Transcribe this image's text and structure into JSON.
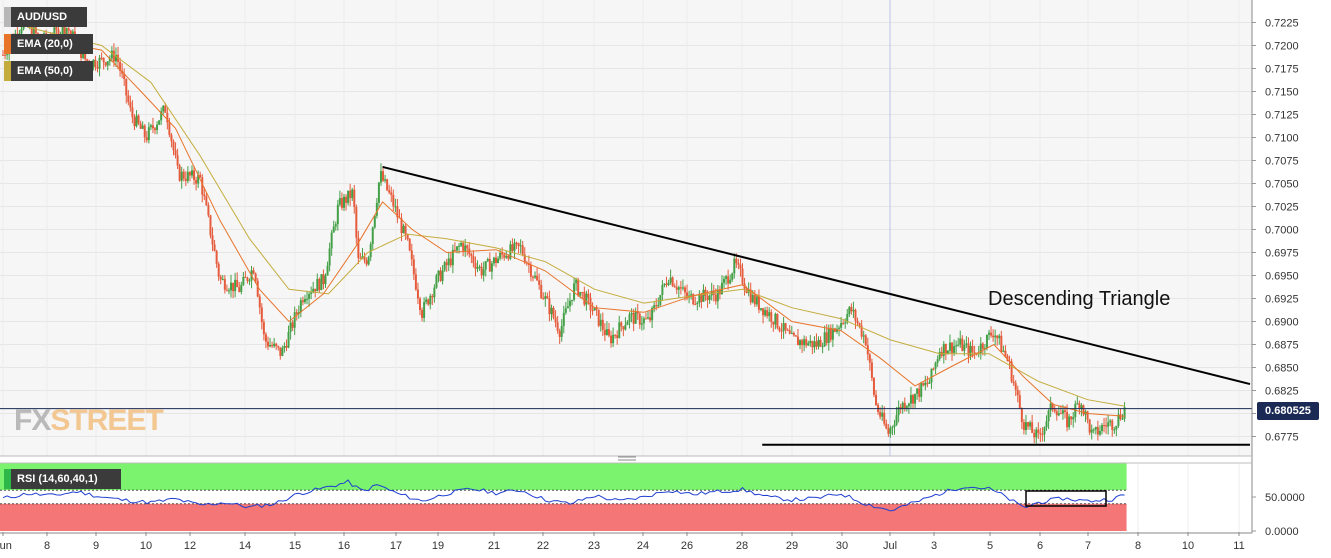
{
  "symbol": "AUD/USD",
  "ema20_label": "EMA (20,0)",
  "ema50_label": "EMA (50,0)",
  "rsi_label": "RSI (14,60,40,1)",
  "annotation": "Descending Triangle",
  "current_price": "0.680525",
  "watermark": {
    "part1": "FX",
    "part2": "STREET"
  },
  "colors": {
    "up": "#43a047",
    "down": "#e55b3c",
    "ema20": "#e8742a",
    "ema50": "#c4ac3c",
    "rsi_line": "#1f3fd0",
    "rsi_overbought": "#7cf36e",
    "rsi_oversold": "#f47676",
    "price_line": "#1b2a55",
    "background": "#f6f6f6"
  },
  "chart_data": {
    "type": "candlestick",
    "price_axis": {
      "ticks": [
        "0.7225",
        "0.7200",
        "0.7175",
        "0.7150",
        "0.7125",
        "0.7100",
        "0.7075",
        "0.7050",
        "0.7025",
        "0.7000",
        "0.6975",
        "0.6950",
        "0.6925",
        "0.6900",
        "0.6875",
        "0.6850",
        "0.6825",
        "0.6800",
        "0.6775"
      ],
      "range": [
        0.676,
        0.7245
      ]
    },
    "x_labels": [
      "Jun",
      "8",
      "9",
      "10",
      "12",
      "14",
      "15",
      "16",
      "17",
      "19",
      "21",
      "22",
      "23",
      "24",
      "26",
      "28",
      "29",
      "30",
      "Jul",
      "3",
      "5",
      "6",
      "7",
      "8",
      "10",
      "11"
    ],
    "price_path": [
      {
        "d": 0.0,
        "p": 0.719
      },
      {
        "d": 0.4,
        "p": 0.7225
      },
      {
        "d": 0.8,
        "p": 0.7205
      },
      {
        "d": 1.3,
        "p": 0.722
      },
      {
        "d": 1.7,
        "p": 0.7182
      },
      {
        "d": 2.0,
        "p": 0.7183
      },
      {
        "d": 2.3,
        "p": 0.719
      },
      {
        "d": 2.6,
        "p": 0.7125
      },
      {
        "d": 2.9,
        "p": 0.71
      },
      {
        "d": 3.3,
        "p": 0.7132
      },
      {
        "d": 3.55,
        "p": 0.706
      },
      {
        "d": 4.0,
        "p": 0.7055
      },
      {
        "d": 4.4,
        "p": 0.6945
      },
      {
        "d": 4.8,
        "p": 0.6935
      },
      {
        "d": 5.1,
        "p": 0.696
      },
      {
        "d": 5.3,
        "p": 0.688
      },
      {
        "d": 5.65,
        "p": 0.6865
      },
      {
        "d": 6.1,
        "p": 0.693
      },
      {
        "d": 6.5,
        "p": 0.6945
      },
      {
        "d": 6.8,
        "p": 0.7025
      },
      {
        "d": 7.1,
        "p": 0.704
      },
      {
        "d": 7.2,
        "p": 0.6965
      },
      {
        "d": 7.4,
        "p": 0.6968
      },
      {
        "d": 7.65,
        "p": 0.706
      },
      {
        "d": 7.9,
        "p": 0.703
      },
      {
        "d": 8.2,
        "p": 0.6985
      },
      {
        "d": 8.5,
        "p": 0.691
      },
      {
        "d": 8.8,
        "p": 0.6945
      },
      {
        "d": 9.3,
        "p": 0.6985
      },
      {
        "d": 9.7,
        "p": 0.6955
      },
      {
        "d": 10.2,
        "p": 0.6975
      },
      {
        "d": 10.5,
        "p": 0.698
      },
      {
        "d": 10.9,
        "p": 0.6935
      },
      {
        "d": 11.3,
        "p": 0.689
      },
      {
        "d": 11.6,
        "p": 0.694
      },
      {
        "d": 12.0,
        "p": 0.691
      },
      {
        "d": 12.3,
        "p": 0.688
      },
      {
        "d": 12.7,
        "p": 0.6905
      },
      {
        "d": 13.1,
        "p": 0.69
      },
      {
        "d": 13.5,
        "p": 0.695
      },
      {
        "d": 13.9,
        "p": 0.6925
      },
      {
        "d": 14.5,
        "p": 0.693
      },
      {
        "d": 14.85,
        "p": 0.6962
      },
      {
        "d": 15.2,
        "p": 0.6925
      },
      {
        "d": 15.6,
        "p": 0.6905
      },
      {
        "d": 16.0,
        "p": 0.688
      },
      {
        "d": 16.5,
        "p": 0.6875
      },
      {
        "d": 16.9,
        "p": 0.6893
      },
      {
        "d": 17.2,
        "p": 0.6913
      },
      {
        "d": 17.5,
        "p": 0.688
      },
      {
        "d": 17.7,
        "p": 0.681
      },
      {
        "d": 17.95,
        "p": 0.6778
      },
      {
        "d": 18.2,
        "p": 0.6808
      },
      {
        "d": 18.5,
        "p": 0.682
      },
      {
        "d": 18.8,
        "p": 0.6835
      },
      {
        "d": 19.0,
        "p": 0.687
      },
      {
        "d": 19.4,
        "p": 0.6875
      },
      {
        "d": 19.7,
        "p": 0.6865
      },
      {
        "d": 20.1,
        "p": 0.689
      },
      {
        "d": 20.4,
        "p": 0.6855
      },
      {
        "d": 20.7,
        "p": 0.679
      },
      {
        "d": 21.0,
        "p": 0.6773
      },
      {
        "d": 21.3,
        "p": 0.681
      },
      {
        "d": 21.6,
        "p": 0.679
      },
      {
        "d": 21.85,
        "p": 0.6815
      },
      {
        "d": 22.1,
        "p": 0.6775
      },
      {
        "d": 22.35,
        "p": 0.6788
      },
      {
        "d": 22.55,
        "p": 0.679
      },
      {
        "d": 22.75,
        "p": 0.6805
      }
    ],
    "ema20_path": [
      {
        "d": 0.5,
        "p": 0.721
      },
      {
        "d": 2,
        "p": 0.7195
      },
      {
        "d": 2.8,
        "p": 0.715
      },
      {
        "d": 3.5,
        "p": 0.711
      },
      {
        "d": 4.4,
        "p": 0.701
      },
      {
        "d": 5.2,
        "p": 0.6935
      },
      {
        "d": 5.8,
        "p": 0.69
      },
      {
        "d": 6.5,
        "p": 0.693
      },
      {
        "d": 7.2,
        "p": 0.6985
      },
      {
        "d": 7.7,
        "p": 0.703
      },
      {
        "d": 8.3,
        "p": 0.7
      },
      {
        "d": 9,
        "p": 0.6975
      },
      {
        "d": 10,
        "p": 0.6978
      },
      {
        "d": 11,
        "p": 0.6955
      },
      {
        "d": 12,
        "p": 0.6915
      },
      {
        "d": 13,
        "p": 0.691
      },
      {
        "d": 14,
        "p": 0.6928
      },
      {
        "d": 15,
        "p": 0.694
      },
      {
        "d": 16,
        "p": 0.69
      },
      {
        "d": 17,
        "p": 0.689
      },
      {
        "d": 17.8,
        "p": 0.686
      },
      {
        "d": 18.5,
        "p": 0.683
      },
      {
        "d": 19.2,
        "p": 0.685
      },
      {
        "d": 20.1,
        "p": 0.6875
      },
      {
        "d": 20.7,
        "p": 0.684
      },
      {
        "d": 21.3,
        "p": 0.681
      },
      {
        "d": 22.0,
        "p": 0.68
      },
      {
        "d": 22.75,
        "p": 0.6797
      }
    ],
    "ema50_path": [
      {
        "d": 0.5,
        "p": 0.722
      },
      {
        "d": 2,
        "p": 0.72
      },
      {
        "d": 3,
        "p": 0.716
      },
      {
        "d": 4,
        "p": 0.708
      },
      {
        "d": 5,
        "p": 0.699
      },
      {
        "d": 5.8,
        "p": 0.6935
      },
      {
        "d": 6.6,
        "p": 0.693
      },
      {
        "d": 7.4,
        "p": 0.6975
      },
      {
        "d": 8.2,
        "p": 0.6995
      },
      {
        "d": 9,
        "p": 0.699
      },
      {
        "d": 10,
        "p": 0.698
      },
      {
        "d": 11,
        "p": 0.6965
      },
      {
        "d": 12,
        "p": 0.6935
      },
      {
        "d": 13,
        "p": 0.692
      },
      {
        "d": 14,
        "p": 0.6928
      },
      {
        "d": 15,
        "p": 0.6935
      },
      {
        "d": 16,
        "p": 0.6915
      },
      {
        "d": 17,
        "p": 0.6903
      },
      {
        "d": 18,
        "p": 0.688
      },
      {
        "d": 19,
        "p": 0.6865
      },
      {
        "d": 20,
        "p": 0.6865
      },
      {
        "d": 21,
        "p": 0.6835
      },
      {
        "d": 22,
        "p": 0.6815
      },
      {
        "d": 22.75,
        "p": 0.6808
      }
    ],
    "trendline_start": {
      "d": 7.7,
      "p": 0.7068
    },
    "trendline_end": {
      "d": 25.4,
      "p": 0.6832
    },
    "support_start": {
      "d": 15.4,
      "p": 0.6766
    },
    "support_end": {
      "d": 25.4,
      "p": 0.6766
    },
    "rsi": {
      "axis_ticks": [
        "50.0000",
        "0.0000"
      ],
      "range": [
        0,
        100
      ],
      "overbought": 60,
      "oversold": 40,
      "path": [
        {
          "d": 0,
          "p": 48
        },
        {
          "d": 0.5,
          "p": 55
        },
        {
          "d": 1,
          "p": 52
        },
        {
          "d": 1.5,
          "p": 58
        },
        {
          "d": 2,
          "p": 50
        },
        {
          "d": 2.5,
          "p": 45
        },
        {
          "d": 3,
          "p": 42
        },
        {
          "d": 3.5,
          "p": 47
        },
        {
          "d": 4,
          "p": 38
        },
        {
          "d": 4.5,
          "p": 42
        },
        {
          "d": 5,
          "p": 35
        },
        {
          "d": 5.5,
          "p": 40
        },
        {
          "d": 6,
          "p": 55
        },
        {
          "d": 6.5,
          "p": 63
        },
        {
          "d": 7,
          "p": 72
        },
        {
          "d": 7.3,
          "p": 58
        },
        {
          "d": 7.6,
          "p": 68
        },
        {
          "d": 8,
          "p": 55
        },
        {
          "d": 8.5,
          "p": 44
        },
        {
          "d": 9,
          "p": 55
        },
        {
          "d": 9.5,
          "p": 62
        },
        {
          "d": 10,
          "p": 56
        },
        {
          "d": 10.5,
          "p": 60
        },
        {
          "d": 11,
          "p": 46
        },
        {
          "d": 11.5,
          "p": 40
        },
        {
          "d": 12,
          "p": 52
        },
        {
          "d": 12.5,
          "p": 44
        },
        {
          "d": 13,
          "p": 50
        },
        {
          "d": 13.5,
          "p": 60
        },
        {
          "d": 14,
          "p": 54
        },
        {
          "d": 14.5,
          "p": 58
        },
        {
          "d": 15,
          "p": 61
        },
        {
          "d": 15.5,
          "p": 50
        },
        {
          "d": 16,
          "p": 46
        },
        {
          "d": 16.5,
          "p": 48
        },
        {
          "d": 17,
          "p": 55
        },
        {
          "d": 17.5,
          "p": 40
        },
        {
          "d": 18,
          "p": 30
        },
        {
          "d": 18.5,
          "p": 42
        },
        {
          "d": 19,
          "p": 55
        },
        {
          "d": 19.5,
          "p": 66
        },
        {
          "d": 20,
          "p": 62
        },
        {
          "d": 20.3,
          "p": 52
        },
        {
          "d": 20.7,
          "p": 34
        },
        {
          "d": 21,
          "p": 42
        },
        {
          "d": 21.5,
          "p": 48
        },
        {
          "d": 22,
          "p": 44
        },
        {
          "d": 22.5,
          "p": 47
        },
        {
          "d": 22.75,
          "p": 53
        }
      ]
    }
  }
}
